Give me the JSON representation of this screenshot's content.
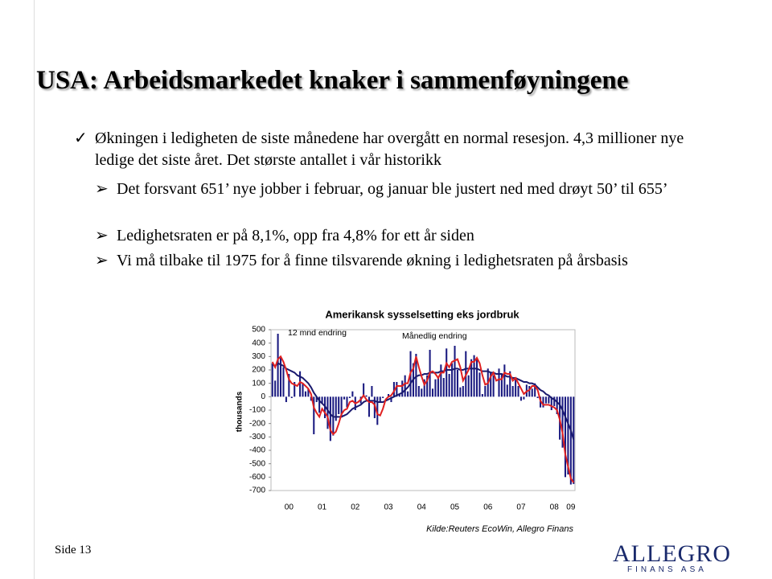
{
  "header": {
    "title": "USA: Arbeidsmarkedet knaker i sammenføyningene"
  },
  "bullets": [
    "Økningen i ledigheten de siste månedene har overgått en normal resesjon. 4,3 millioner nye ledige det siste året. Det største antallet i vår historikk"
  ],
  "sub_bullets": [
    "Det forsvant 651’ nye jobber i februar, og januar ble justert ned med drøyt 50’ til 655’",
    "Ledighetsraten er på 8,1%, opp fra 4,8% for ett år siden",
    "Vi må tilbake til 1975 for å finne tilsvarende økning i ledighetsraten på årsbasis"
  ],
  "footer": {
    "page": "Side 13",
    "logo": "ALLEGRO",
    "logo_sub": "FINANS ASA"
  },
  "chart_data": {
    "type": "bar",
    "title": "Amerikansk sysselsetting eks jordbruk",
    "y_label": "thousands",
    "source": "Kilde:Reuters EcoWin, Allegro Finans",
    "categories": [
      null,
      null,
      null,
      null,
      null,
      null,
      "00",
      null,
      null,
      null,
      null,
      null,
      null,
      null,
      null,
      null,
      null,
      null,
      "01",
      null,
      null,
      null,
      null,
      null,
      null,
      null,
      null,
      null,
      null,
      null,
      "02",
      null,
      null,
      null,
      null,
      null,
      null,
      null,
      null,
      null,
      null,
      null,
      "03",
      null,
      null,
      null,
      null,
      null,
      null,
      null,
      null,
      null,
      null,
      null,
      "04",
      null,
      null,
      null,
      null,
      null,
      null,
      null,
      null,
      null,
      null,
      null,
      "05",
      null,
      null,
      null,
      null,
      null,
      null,
      null,
      null,
      null,
      null,
      null,
      "06",
      null,
      null,
      null,
      null,
      null,
      null,
      null,
      null,
      null,
      null,
      null,
      "07",
      null,
      null,
      null,
      null,
      null,
      null,
      null,
      null,
      null,
      null,
      null,
      "08",
      null,
      null,
      null,
      null,
      null,
      "09",
      null
    ],
    "series": [
      {
        "name": "Månedlig endring",
        "kind": "bar",
        "color": "#1a1a80",
        "values": [
          250,
          120,
          470,
          290,
          220,
          -40,
          170,
          -10,
          110,
          0,
          190,
          100,
          40,
          60,
          -30,
          -280,
          -40,
          -120,
          -50,
          -160,
          -240,
          -330,
          -290,
          -180,
          -130,
          -150,
          -20,
          -80,
          -10,
          40,
          -100,
          0,
          -50,
          100,
          10,
          -150,
          80,
          -160,
          -210,
          -40,
          -10,
          0,
          20,
          -40,
          110,
          110,
          20,
          120,
          160,
          40,
          340,
          250,
          320,
          80,
          60,
          130,
          160,
          350,
          60,
          130,
          140,
          240,
          140,
          360,
          170,
          250,
          380,
          200,
          70,
          80,
          340,
          160,
          280,
          310,
          280,
          180,
          20,
          80,
          210,
          180,
          160,
          0,
          210,
          170,
          240,
          90,
          190,
          80,
          140,
          80,
          -30,
          -20,
          90,
          80,
          60,
          100,
          -10,
          -80,
          -80,
          -50,
          -50,
          -100,
          -70,
          -130,
          -320,
          -380,
          -600,
          -580,
          -655,
          -651
        ]
      },
      {
        "name": "12 mnd endring",
        "kind": "line",
        "color": "#1a1a6e",
        "values": [
          240,
          230,
          250,
          240,
          230,
          210,
          200,
          190,
          180,
          160,
          150,
          140,
          120,
          100,
          70,
          30,
          0,
          -30,
          -50,
          -70,
          -100,
          -130,
          -150,
          -150,
          -150,
          -150,
          -140,
          -130,
          -110,
          -90,
          -80,
          -70,
          -60,
          -40,
          -30,
          -30,
          -30,
          -30,
          -40,
          -40,
          -40,
          -30,
          -20,
          -10,
          0,
          10,
          20,
          30,
          50,
          70,
          100,
          130,
          150,
          160,
          160,
          170,
          170,
          180,
          180,
          180,
          180,
          190,
          190,
          200,
          200,
          200,
          210,
          210,
          200,
          200,
          210,
          210,
          210,
          210,
          210,
          200,
          190,
          190,
          190,
          180,
          180,
          170,
          170,
          170,
          160,
          150,
          150,
          140,
          140,
          130,
          120,
          110,
          110,
          100,
          100,
          90,
          70,
          50,
          40,
          20,
          10,
          -10,
          -20,
          -40,
          -60,
          -100,
          -150,
          -200,
          -250,
          -320
        ]
      },
      {
        "kind": "line",
        "color": "#e02020",
        "values": [
          260,
          220,
          280,
          300,
          260,
          200,
          130,
          100,
          90,
          80,
          110,
          100,
          80,
          60,
          20,
          -80,
          -120,
          -150,
          -90,
          -120,
          -150,
          -250,
          -280,
          -260,
          -200,
          -130,
          -100,
          -90,
          -40,
          -30,
          -50,
          -40,
          -20,
          10,
          -20,
          -40,
          -40,
          -60,
          -130,
          -140,
          -90,
          -20,
          0,
          10,
          40,
          80,
          80,
          80,
          100,
          100,
          180,
          210,
          300,
          220,
          150,
          90,
          120,
          180,
          190,
          170,
          140,
          180,
          180,
          250,
          220,
          260,
          270,
          280,
          220,
          120,
          160,
          200,
          260,
          260,
          290,
          250,
          160,
          90,
          100,
          150,
          180,
          120,
          130,
          130,
          180,
          170,
          170,
          120,
          140,
          100,
          60,
          20,
          40,
          50,
          80,
          80,
          50,
          -30,
          -60,
          -60,
          -60,
          -70,
          -80,
          -100,
          -170,
          -270,
          -430,
          -520,
          -610,
          -640
        ]
      }
    ],
    "ylim": [
      -700,
      500
    ],
    "yticks": [
      500,
      400,
      300,
      200,
      100,
      0,
      -100,
      -200,
      -300,
      -400,
      -500,
      -600,
      -700
    ]
  }
}
